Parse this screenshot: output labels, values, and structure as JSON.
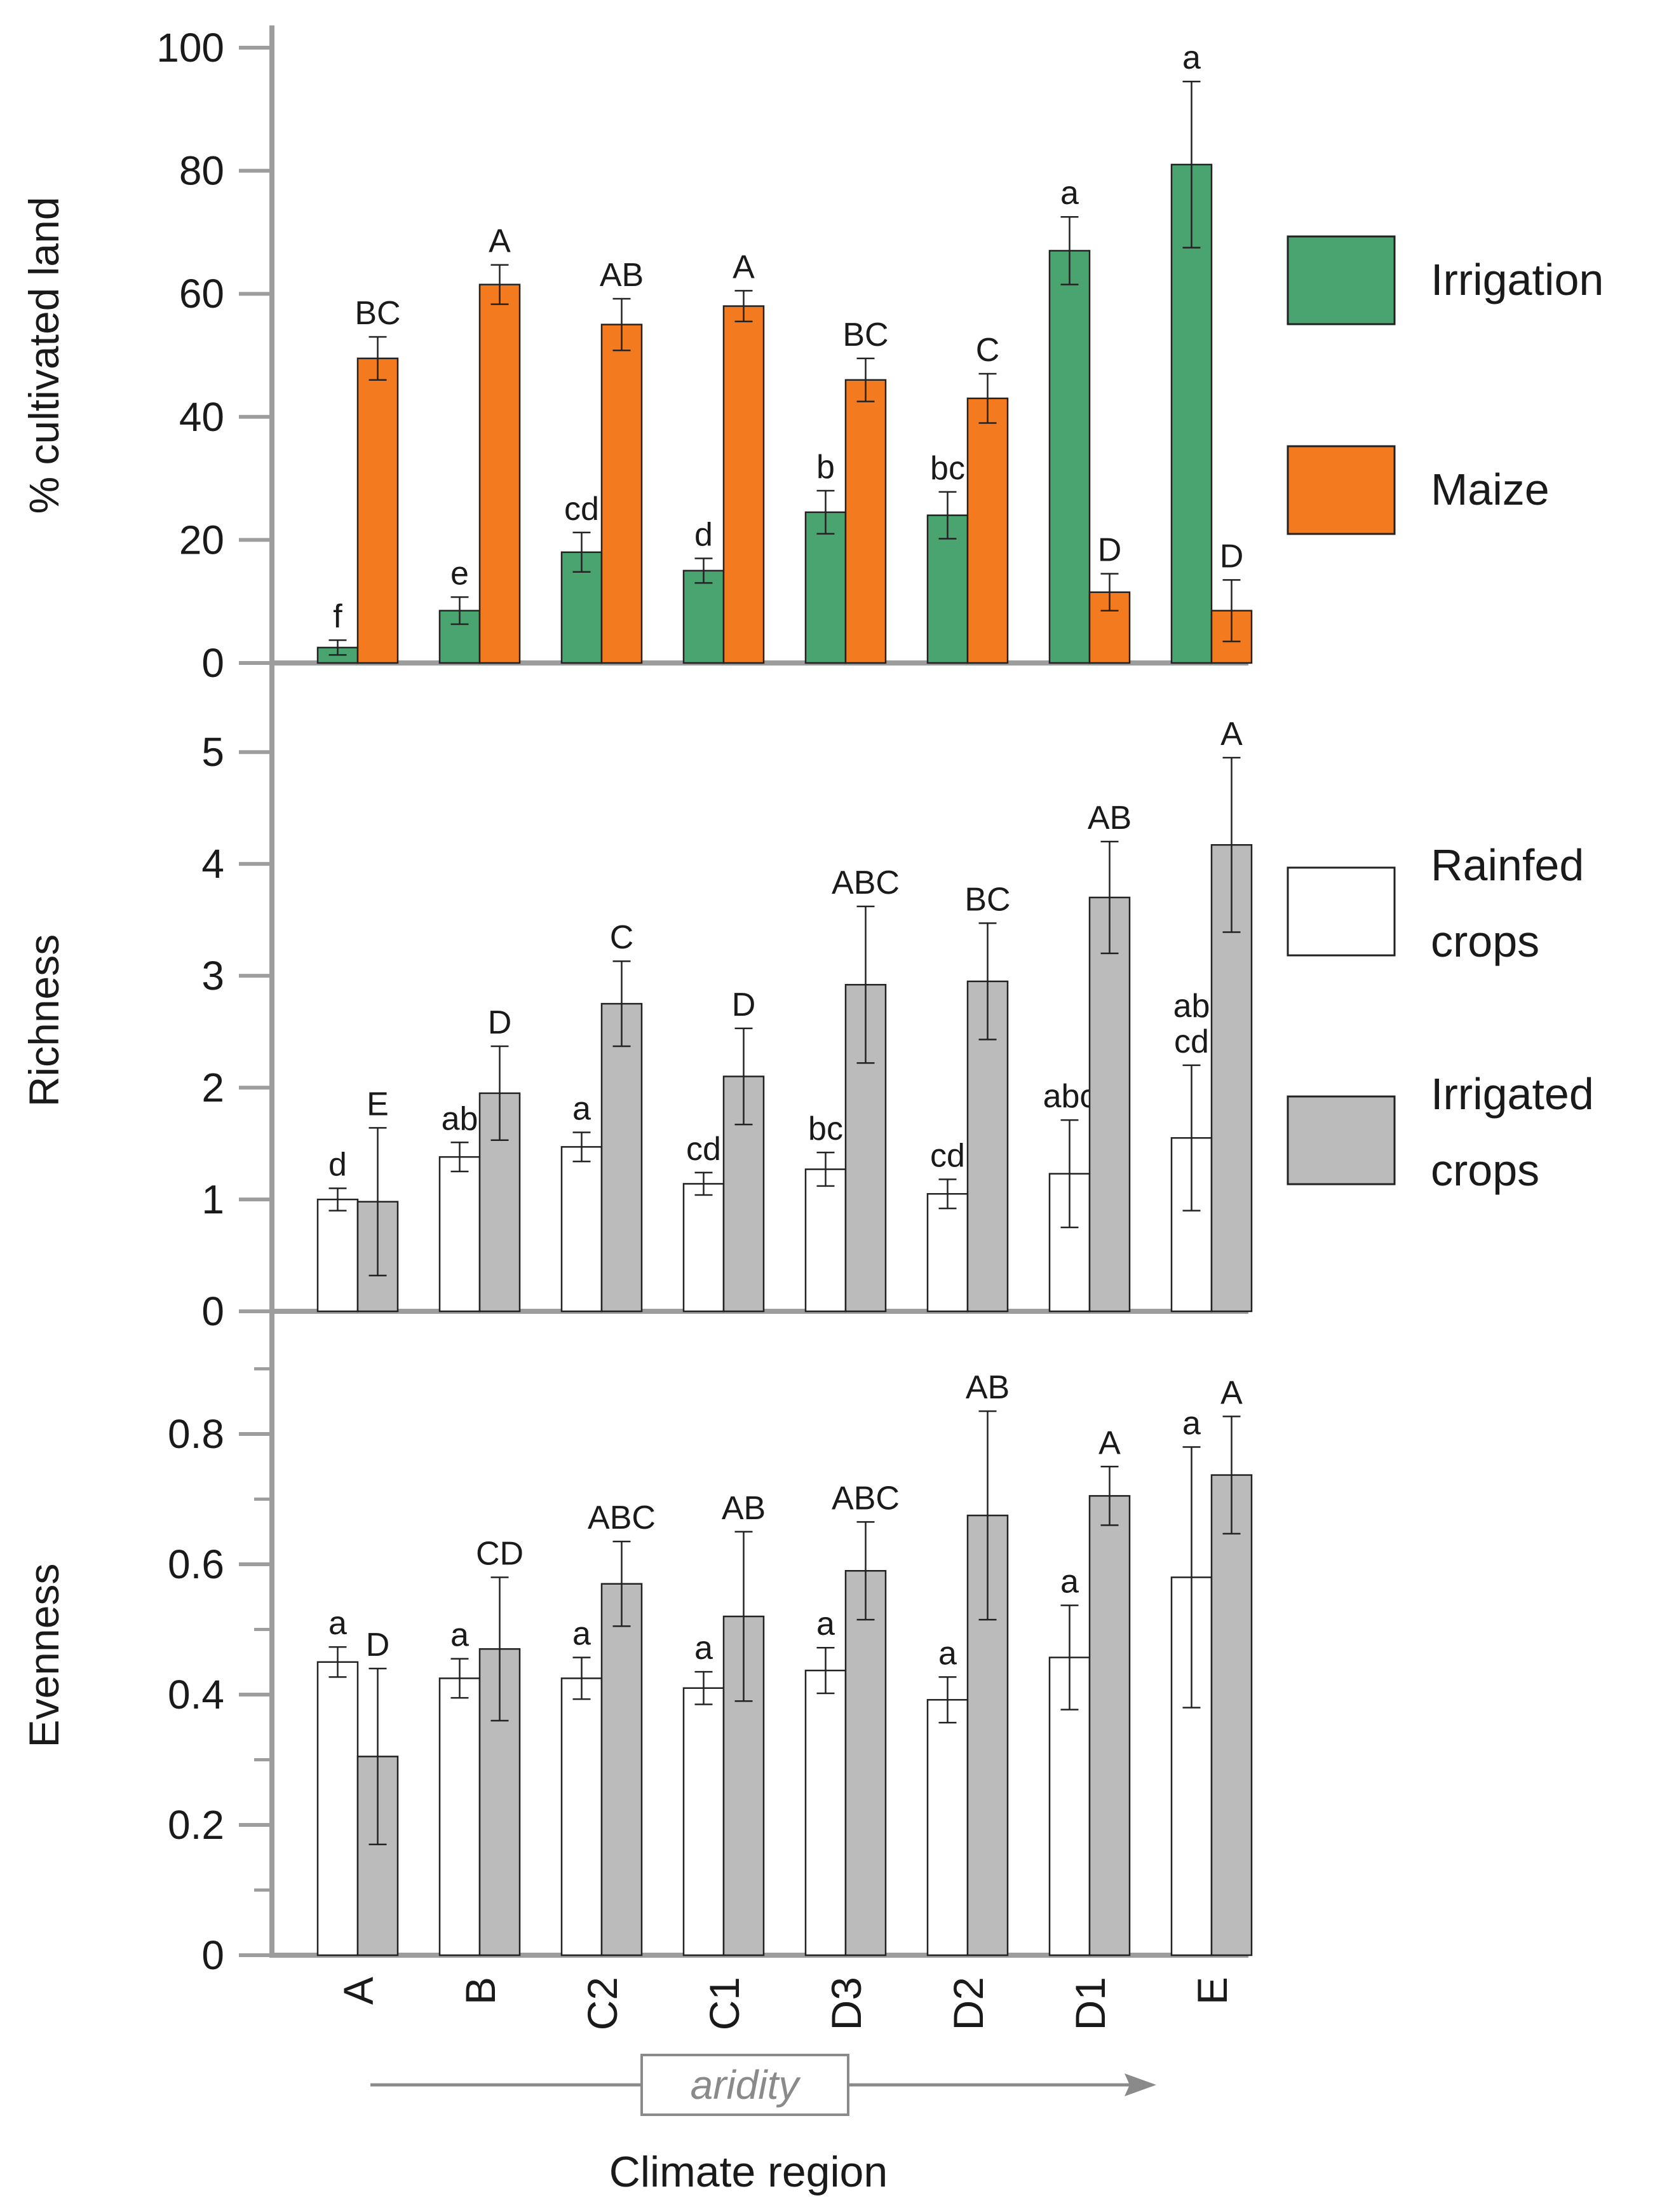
{
  "chart_data": [
    {
      "type": "bar",
      "categories": [
        "A",
        "B",
        "C2",
        "C1",
        "D3",
        "D2",
        "D1",
        "E"
      ],
      "ylabel": "% cultivated land",
      "ylim": [
        0,
        100
      ],
      "yticks": [
        "0",
        "20",
        "40",
        "60",
        "80",
        "100"
      ],
      "legend_position": "right",
      "series": [
        {
          "name": "Irrigation",
          "color": "#4aa470",
          "values": [
            2.5,
            8.5,
            18,
            15,
            24.5,
            24,
            67,
            81
          ],
          "errors": [
            1.2,
            2.2,
            3.2,
            2.0,
            3.5,
            3.8,
            5.5,
            13.5
          ],
          "letters": [
            "f",
            "e",
            "cd",
            "d",
            "b",
            "bc",
            "a",
            "a"
          ]
        },
        {
          "name": "Maize",
          "color": "#f47a1f",
          "values": [
            49.5,
            61.5,
            55,
            58,
            46,
            43,
            11.5,
            8.5
          ],
          "errors": [
            3.5,
            3.2,
            4.2,
            2.5,
            3.5,
            4.0,
            3.0,
            5.0
          ],
          "letters": [
            "BC",
            "A",
            "AB",
            "A",
            "BC",
            "C",
            "D",
            "D"
          ]
        }
      ]
    },
    {
      "type": "bar",
      "categories": [
        "A",
        "B",
        "C2",
        "C1",
        "D3",
        "D2",
        "D1",
        "E"
      ],
      "ylabel": "Richness",
      "ylim": [
        0,
        5.2
      ],
      "yticks": [
        "0",
        "1",
        "2",
        "3",
        "4",
        "5"
      ],
      "legend_position": "right",
      "series": [
        {
          "name": "Rainfed crops",
          "name_lines": [
            "Rainfed",
            "crops"
          ],
          "color": "#ffffff",
          "values": [
            1.0,
            1.38,
            1.47,
            1.14,
            1.27,
            1.05,
            1.23,
            1.55
          ],
          "errors": [
            0.1,
            0.13,
            0.13,
            0.1,
            0.15,
            0.13,
            0.48,
            0.65
          ],
          "letters": [
            "d",
            "ab",
            "a",
            "cd",
            "bc",
            "cd",
            "abc",
            "ab\ncd"
          ]
        },
        {
          "name": "Irrigated crops",
          "name_lines": [
            "Irrigated",
            "crops"
          ],
          "color": "#bbbbbb",
          "values": [
            0.98,
            1.95,
            2.75,
            2.1,
            2.92,
            2.95,
            3.7,
            4.17
          ],
          "errors": [
            0.66,
            0.42,
            0.38,
            0.43,
            0.7,
            0.52,
            0.5,
            0.78
          ],
          "letters": [
            "E",
            "D",
            "C",
            "D",
            "ABC",
            "BC",
            "AB",
            "A"
          ]
        }
      ]
    },
    {
      "type": "bar",
      "categories": [
        "A",
        "B",
        "C2",
        "C1",
        "D3",
        "D2",
        "D1",
        "E"
      ],
      "ylabel": "Evenness",
      "xlabel": "Climate region",
      "ylim": [
        0,
        0.92
      ],
      "yticks": [
        "0",
        "0.2",
        "0.4",
        "0.6",
        "0.8"
      ],
      "series": [
        {
          "name": "Rainfed crops",
          "color": "#ffffff",
          "values": [
            0.45,
            0.425,
            0.425,
            0.41,
            0.437,
            0.392,
            0.457,
            0.58
          ],
          "errors": [
            0.023,
            0.03,
            0.032,
            0.025,
            0.035,
            0.035,
            0.08,
            0.2
          ],
          "letters": [
            "a",
            "a",
            "a",
            "a",
            "a",
            "a",
            "a",
            "a"
          ]
        },
        {
          "name": "Irrigated crops",
          "color": "#bbbbbb",
          "values": [
            0.305,
            0.47,
            0.57,
            0.52,
            0.59,
            0.675,
            0.705,
            0.737
          ],
          "errors": [
            0.135,
            0.11,
            0.065,
            0.13,
            0.075,
            0.16,
            0.045,
            0.09
          ],
          "letters": [
            "D",
            "CD",
            "ABC",
            "AB",
            "ABC",
            "AB",
            "A",
            "A"
          ]
        }
      ]
    }
  ],
  "aridity_label": "aridity"
}
